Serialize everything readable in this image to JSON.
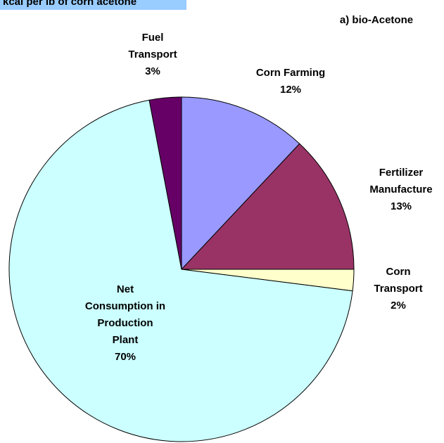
{
  "chart_data": {
    "type": "pie",
    "title": "kcal per lb of corn acetone",
    "subtitle": "a) bio-Acetone",
    "categories": [
      "Corn Farming",
      "Fertilizer Manufacture",
      "Corn Transport",
      "Net Consumption in Production Plant",
      "Fuel Transport"
    ],
    "values": [
      12,
      13,
      2,
      70,
      3
    ],
    "value_labels": [
      "12%",
      "13%",
      "2%",
      "70%",
      "3%"
    ],
    "colors": [
      "#9999ff",
      "#993366",
      "#ffffcc",
      "#ccffff",
      "#660066"
    ]
  }
}
